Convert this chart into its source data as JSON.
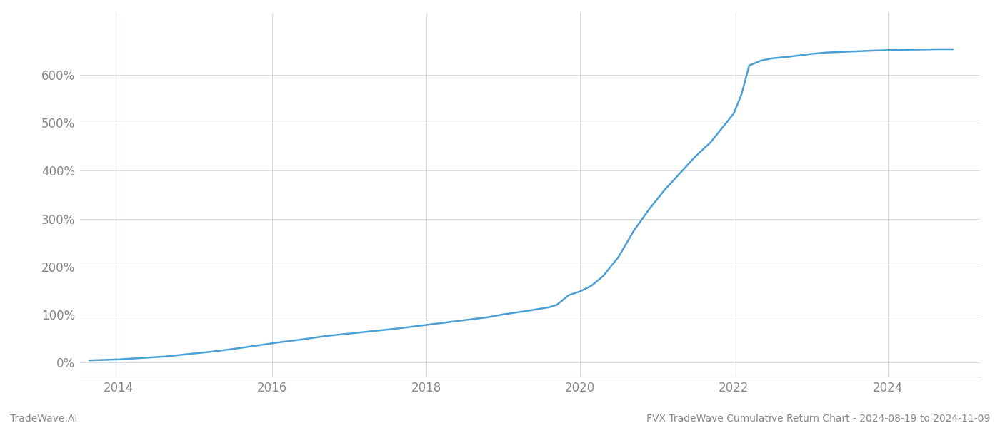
{
  "title": "FVX TradeWave Cumulative Return Chart - 2024-08-19 to 2024-11-09",
  "footer_left": "TradeWave.AI",
  "footer_right": "FVX TradeWave Cumulative Return Chart - 2024-08-19 to 2024-11-09",
  "line_color": "#4a9fd4",
  "background_color": "#ffffff",
  "grid_color": "#d0d8e0",
  "x_values": [
    2013.62,
    2014.0,
    2014.3,
    2014.6,
    2014.9,
    2015.2,
    2015.5,
    2015.8,
    2016.1,
    2016.4,
    2016.7,
    2017.0,
    2017.3,
    2017.6,
    2017.9,
    2018.2,
    2018.5,
    2018.8,
    2019.0,
    2019.3,
    2019.6,
    2019.7,
    2019.85,
    2020.0,
    2020.15,
    2020.3,
    2020.5,
    2020.7,
    2020.9,
    2021.1,
    2021.3,
    2021.5,
    2021.7,
    2021.85,
    2022.0,
    2022.1,
    2022.2,
    2022.35,
    2022.5,
    2022.7,
    2022.85,
    2023.0,
    2023.2,
    2023.5,
    2023.8,
    2024.0,
    2024.3,
    2024.65,
    2024.85
  ],
  "y_values": [
    4,
    6,
    9,
    12,
    17,
    22,
    28,
    35,
    42,
    48,
    55,
    60,
    65,
    70,
    76,
    82,
    88,
    94,
    100,
    107,
    115,
    120,
    140,
    148,
    160,
    180,
    220,
    275,
    320,
    360,
    395,
    430,
    460,
    490,
    520,
    560,
    620,
    630,
    635,
    638,
    641,
    644,
    647,
    649,
    651,
    652,
    653,
    654,
    654
  ],
  "x_ticks": [
    2014,
    2016,
    2018,
    2020,
    2022,
    2024
  ],
  "x_tick_labels": [
    "2014",
    "2016",
    "2018",
    "2020",
    "2022",
    "2024"
  ],
  "y_ticks": [
    0,
    100,
    200,
    300,
    400,
    500,
    600
  ],
  "y_tick_labels": [
    "0%",
    "100%",
    "200%",
    "300%",
    "400%",
    "500%",
    "600%"
  ],
  "xlim": [
    2013.5,
    2025.2
  ],
  "ylim": [
    -30,
    730
  ],
  "figsize": [
    14,
    6
  ],
  "dpi": 100,
  "line_width": 1.8
}
